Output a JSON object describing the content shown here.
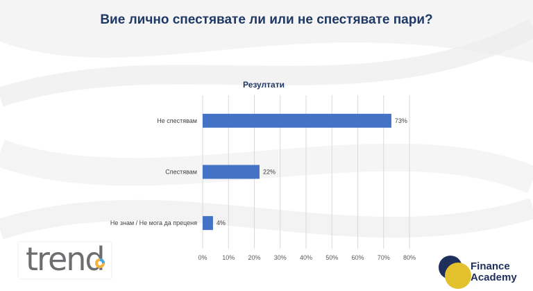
{
  "slide": {
    "title": "Вие лично спестявате ли или не спестявате пари?"
  },
  "chart_data": {
    "type": "bar",
    "orientation": "horizontal",
    "title": "Резултати",
    "categories": [
      "Не спестявам",
      "Спестявам",
      "Не знам / Не мога да преценя"
    ],
    "values": [
      73,
      22,
      4
    ],
    "value_labels": [
      "73%",
      "22%",
      "4%"
    ],
    "xlim": [
      0,
      80
    ],
    "x_ticks": [
      "0%",
      "10%",
      "20%",
      "30%",
      "40%",
      "50%",
      "60%",
      "70%",
      "80%"
    ],
    "grid": true,
    "legend": "none",
    "bar_color": "#4472c4"
  },
  "logos": {
    "trend": "trend",
    "finance_line1": "Finance",
    "finance_line2": "Academy"
  },
  "colors": {
    "title": "#1f3864",
    "bar": "#4472c4"
  }
}
